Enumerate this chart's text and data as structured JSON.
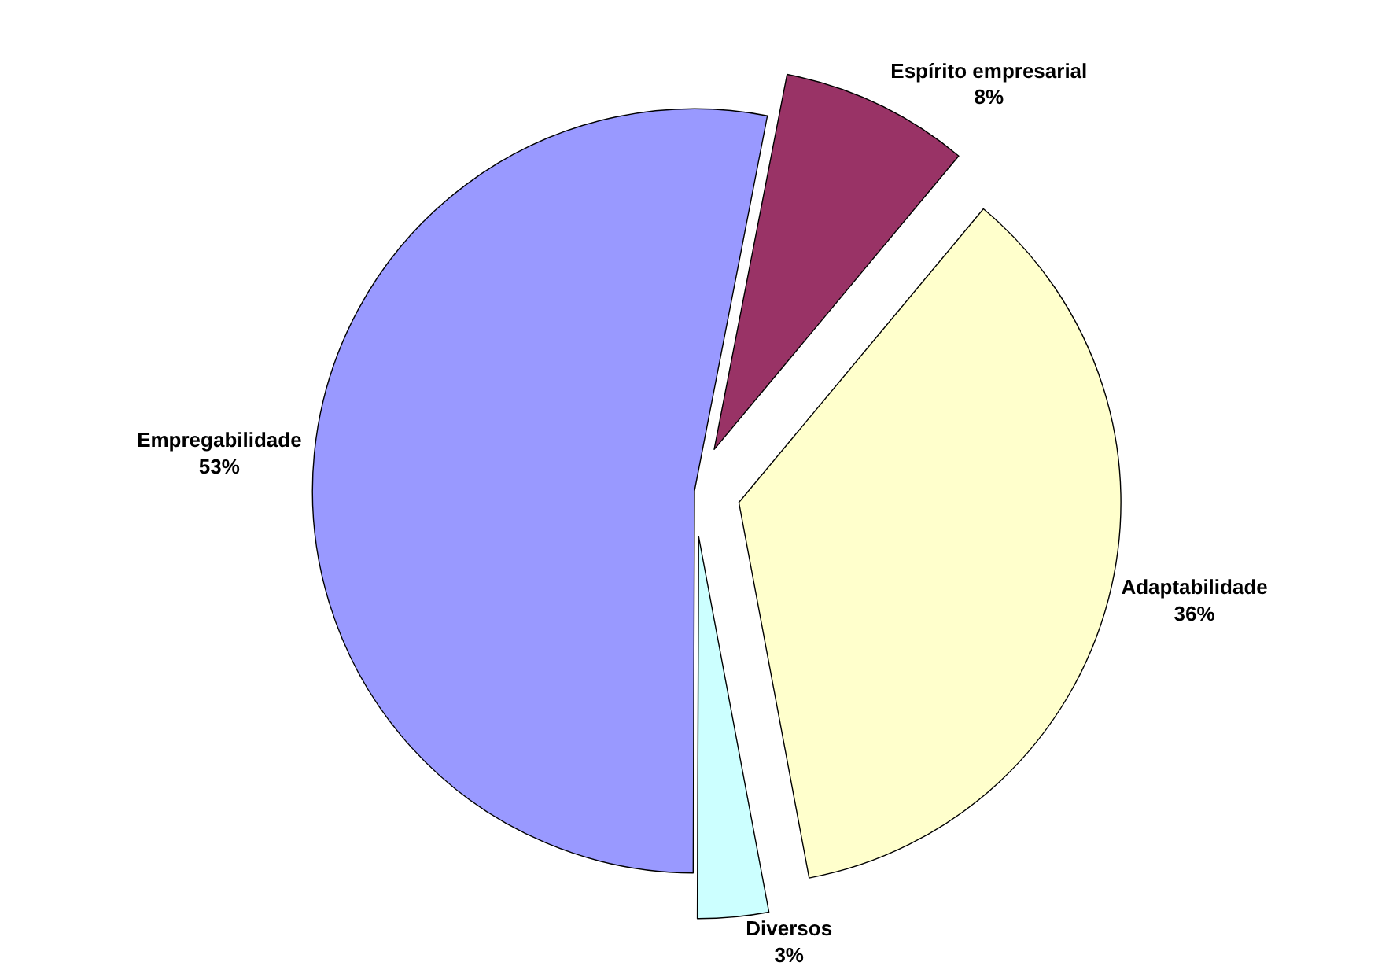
{
  "chart_data": {
    "type": "pie",
    "categories": [
      "Espírito empresarial",
      "Adaptabilidade",
      "Diversos",
      "Empregabilidade"
    ],
    "values": [
      8,
      36,
      3,
      53
    ],
    "colors": [
      "#993366",
      "#ffffcc",
      "#ccffff",
      "#9999ff"
    ],
    "value_labels": [
      "8%",
      "36%",
      "3%",
      "53%"
    ],
    "legend": false
  }
}
